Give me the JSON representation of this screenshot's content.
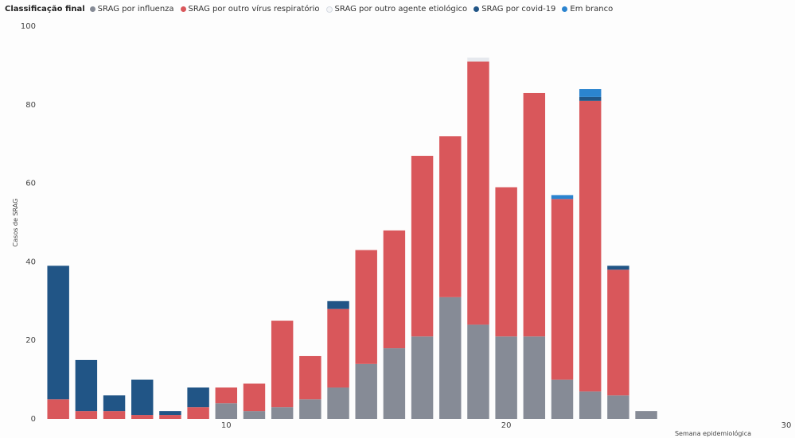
{
  "chart_data": {
    "type": "bar",
    "stacked": true,
    "legend_title": "Classificação final",
    "xlabel": "Semana epidemiológica",
    "ylabel": "Casos de SRAG",
    "xlim": [
      3,
      30
    ],
    "ylim": [
      0,
      100
    ],
    "x_ticks": [
      10,
      20,
      30
    ],
    "y_ticks": [
      0,
      20,
      40,
      60,
      80,
      100
    ],
    "grid": false,
    "x": [
      4,
      5,
      6,
      7,
      8,
      9,
      10,
      11,
      12,
      13,
      14,
      15,
      16,
      17,
      18,
      19,
      20,
      21,
      22,
      23,
      24,
      25
    ],
    "series": [
      {
        "name": "SRAG por influenza",
        "color": "#868b96",
        "values": [
          0,
          0,
          0,
          0,
          0,
          0,
          4,
          2,
          3,
          5,
          8,
          14,
          18,
          21,
          31,
          24,
          21,
          21,
          10,
          7,
          6,
          2
        ]
      },
      {
        "name": "SRAG por outro vírus respiratório",
        "color": "#d9575b",
        "values": [
          5,
          2,
          2,
          1,
          1,
          3,
          4,
          7,
          22,
          11,
          20,
          29,
          30,
          46,
          41,
          67,
          38,
          62,
          46,
          74,
          32,
          0
        ]
      },
      {
        "name": "SRAG por outro agente etiológico",
        "color": "#e6e9ee",
        "values": [
          0,
          0,
          0,
          0,
          0,
          0,
          0,
          0,
          0,
          0,
          0,
          0,
          0,
          0,
          0,
          1,
          0,
          0,
          0,
          0,
          0,
          0
        ]
      },
      {
        "name": "SRAG por covid-19",
        "color": "#215586",
        "values": [
          34,
          13,
          4,
          9,
          1,
          5,
          0,
          0,
          0,
          0,
          2,
          0,
          0,
          0,
          0,
          0,
          0,
          0,
          0,
          1,
          1,
          0
        ]
      },
      {
        "name": "Em branco",
        "color": "#2b84cf",
        "values": [
          0,
          0,
          0,
          0,
          0,
          0,
          0,
          0,
          0,
          0,
          0,
          0,
          0,
          0,
          0,
          0,
          0,
          0,
          1,
          2,
          0,
          0
        ]
      }
    ]
  }
}
